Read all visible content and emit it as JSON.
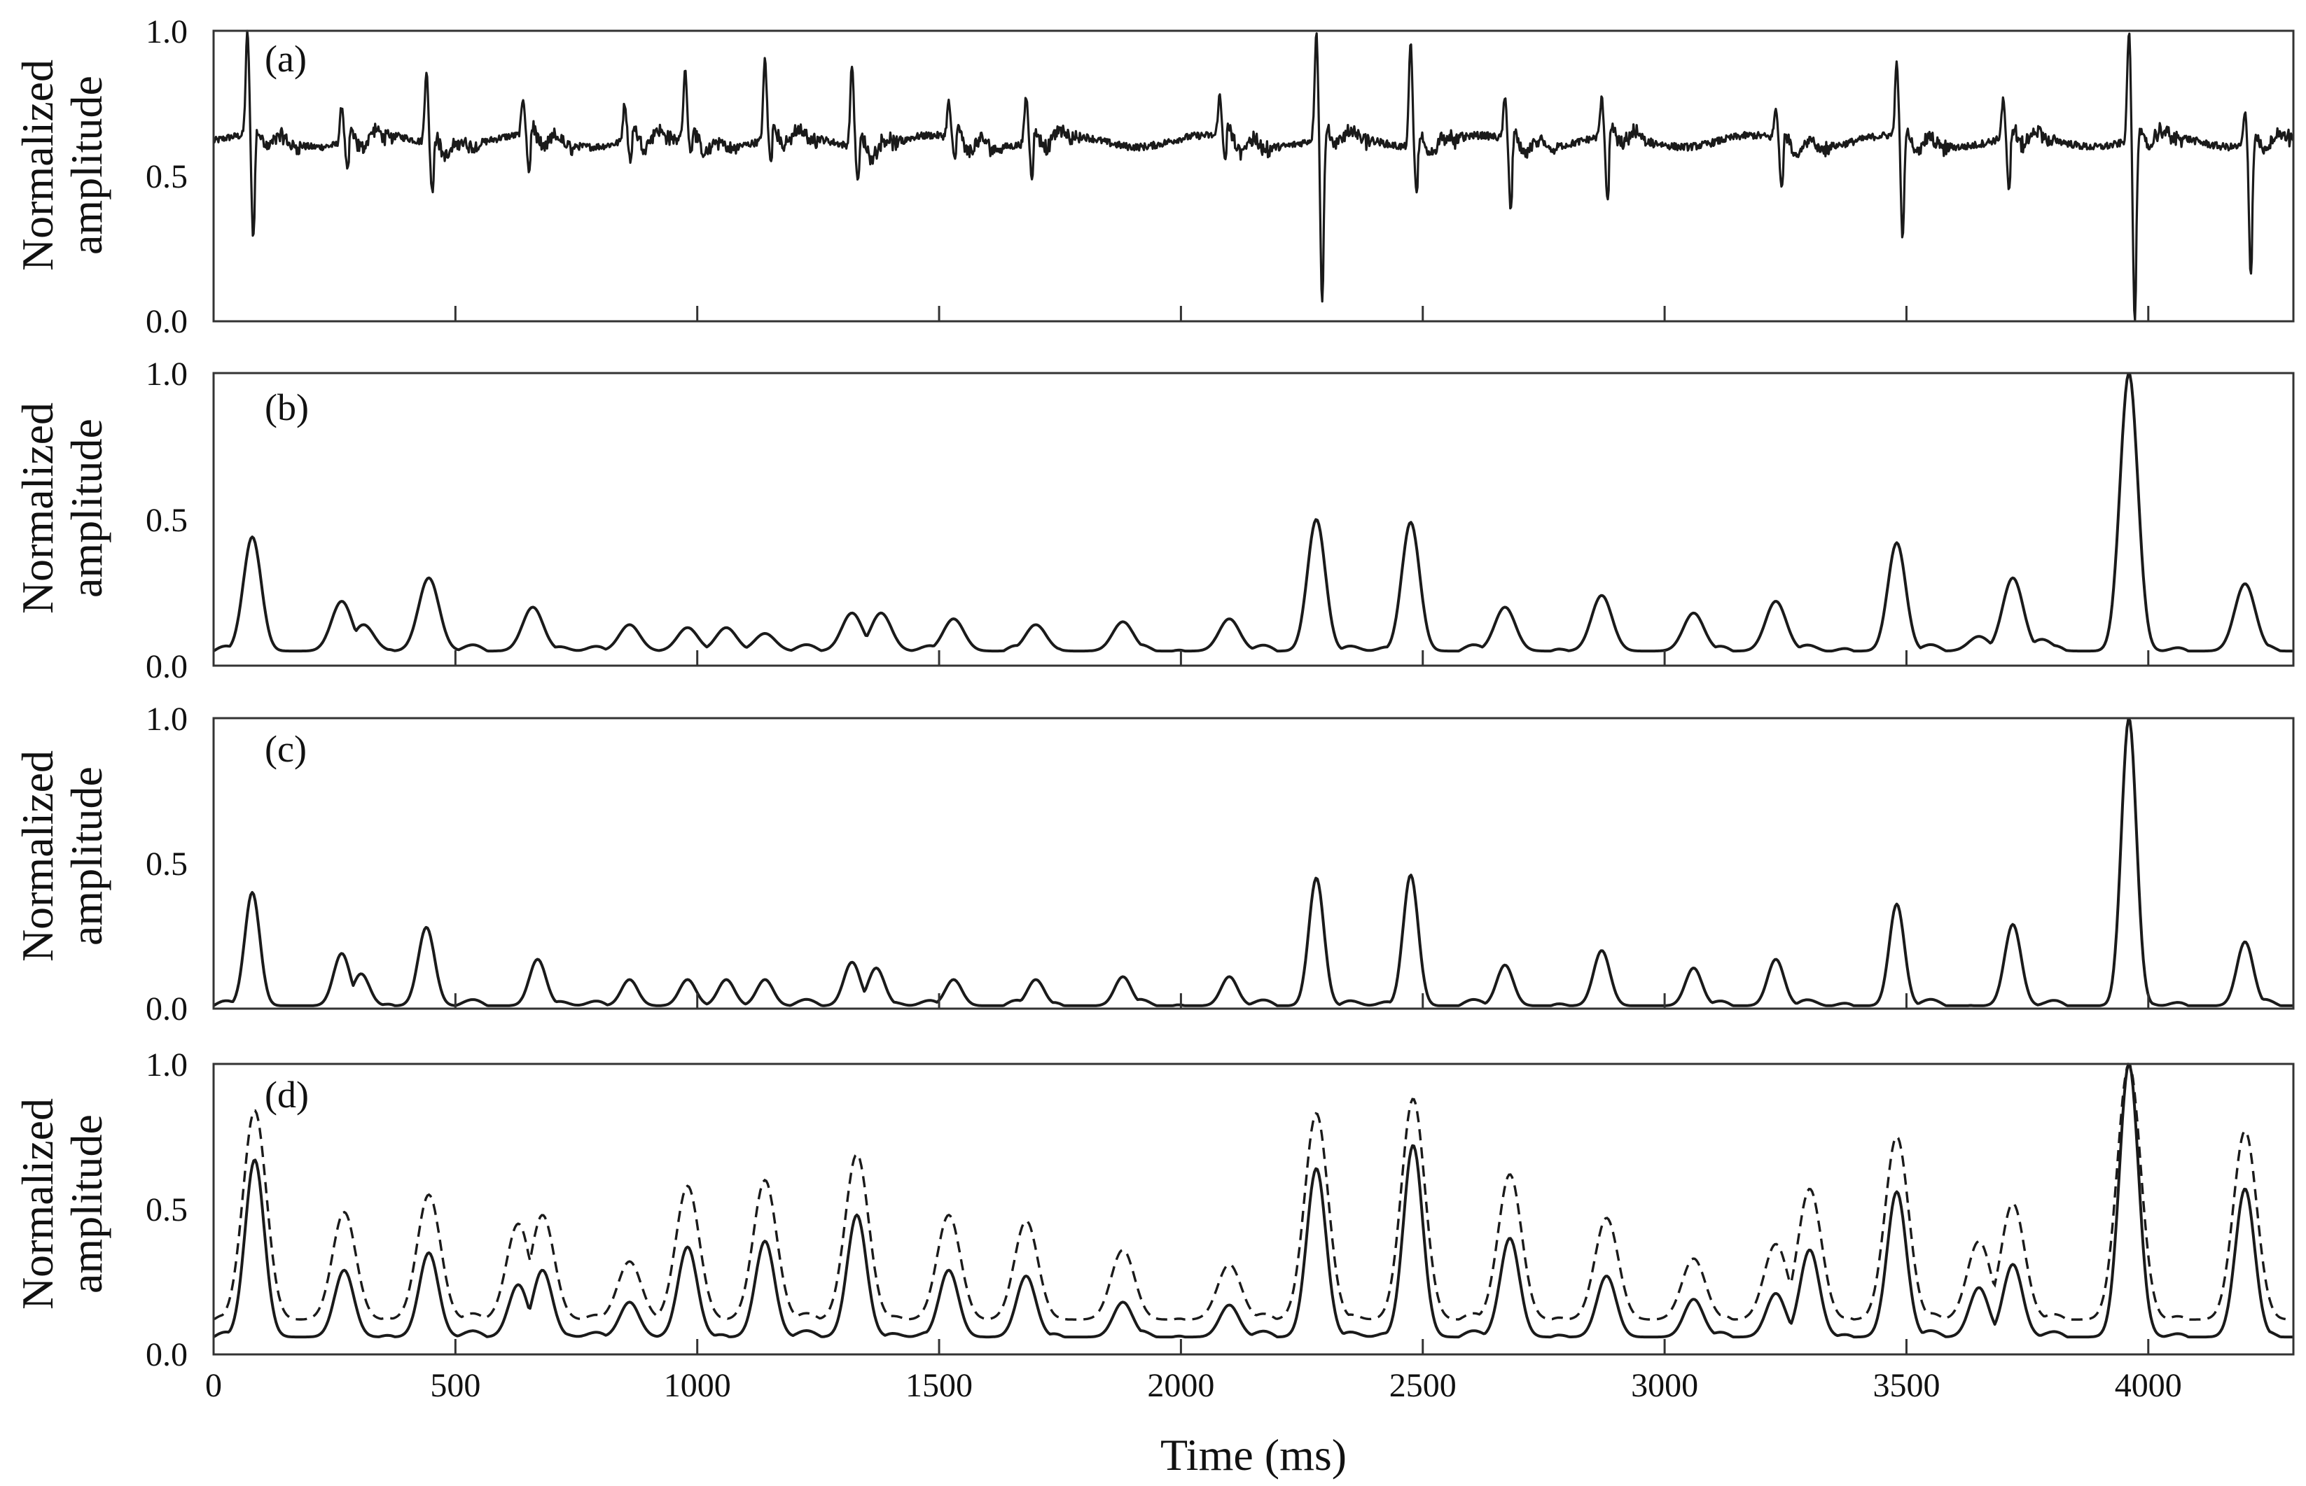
{
  "x_axis": {
    "label": "Time (ms)",
    "min": 0,
    "max": 4300,
    "ticks": [
      0,
      500,
      1000,
      1500,
      2000,
      2500,
      3000,
      3500,
      4000
    ]
  },
  "y_axis_label_lines": [
    "Normalized",
    "amplitude"
  ],
  "panels": [
    {
      "label": "(a)",
      "yticks": [
        "0.0",
        "0.5",
        "1.0"
      ]
    },
    {
      "label": "(b)",
      "yticks": [
        "0.0",
        "0.5",
        "1.0"
      ]
    },
    {
      "label": "(c)",
      "yticks": [
        "0.0",
        "0.5",
        "1.0"
      ]
    },
    {
      "label": "(d)",
      "yticks": [
        "0.0",
        "0.5",
        "1.0"
      ]
    }
  ],
  "chart_data": [
    {
      "type": "line",
      "panel": "(a)",
      "xlabel": "Time (ms)",
      "ylabel": "Normalized amplitude",
      "xlim": [
        0,
        4300
      ],
      "ylim": [
        0,
        1
      ],
      "baseline": 0.62,
      "spikes": [
        {
          "x": 70,
          "peak": 0.98,
          "trough": 0.27
        },
        {
          "x": 265,
          "peak": 0.75,
          "trough": 0.52
        },
        {
          "x": 440,
          "peak": 0.87,
          "trough": 0.46
        },
        {
          "x": 640,
          "peak": 0.75,
          "trough": 0.5
        },
        {
          "x": 850,
          "peak": 0.75,
          "trough": 0.55
        },
        {
          "x": 975,
          "peak": 0.87,
          "trough": 0.58
        },
        {
          "x": 1140,
          "peak": 0.9,
          "trough": 0.55
        },
        {
          "x": 1320,
          "peak": 0.9,
          "trough": 0.5
        },
        {
          "x": 1520,
          "peak": 0.74,
          "trough": 0.55
        },
        {
          "x": 1680,
          "peak": 0.78,
          "trough": 0.5
        },
        {
          "x": 2080,
          "peak": 0.76,
          "trough": 0.55
        },
        {
          "x": 2280,
          "peak": 0.99,
          "trough": 0.06
        },
        {
          "x": 2475,
          "peak": 0.98,
          "trough": 0.46
        },
        {
          "x": 2670,
          "peak": 0.76,
          "trough": 0.38
        },
        {
          "x": 2870,
          "peak": 0.75,
          "trough": 0.4
        },
        {
          "x": 3230,
          "peak": 0.72,
          "trough": 0.45
        },
        {
          "x": 3480,
          "peak": 0.87,
          "trough": 0.27
        },
        {
          "x": 3700,
          "peak": 0.75,
          "trough": 0.43
        },
        {
          "x": 3960,
          "peak": 1.0,
          "trough": 0.0
        },
        {
          "x": 4200,
          "peak": 0.73,
          "trough": 0.17
        }
      ]
    },
    {
      "type": "line",
      "panel": "(b)",
      "xlabel": "Time (ms)",
      "ylabel": "Normalized amplitude",
      "xlim": [
        0,
        4300
      ],
      "ylim": [
        0,
        1
      ],
      "baseline": 0.05,
      "peaks": [
        {
          "x": 80,
          "y": 0.44
        },
        {
          "x": 265,
          "y": 0.22
        },
        {
          "x": 310,
          "y": 0.14
        },
        {
          "x": 445,
          "y": 0.3
        },
        {
          "x": 660,
          "y": 0.2
        },
        {
          "x": 860,
          "y": 0.14
        },
        {
          "x": 980,
          "y": 0.13
        },
        {
          "x": 1060,
          "y": 0.13
        },
        {
          "x": 1140,
          "y": 0.11
        },
        {
          "x": 1320,
          "y": 0.18
        },
        {
          "x": 1380,
          "y": 0.18
        },
        {
          "x": 1530,
          "y": 0.16
        },
        {
          "x": 1700,
          "y": 0.14
        },
        {
          "x": 1880,
          "y": 0.15
        },
        {
          "x": 2100,
          "y": 0.16
        },
        {
          "x": 2280,
          "y": 0.5
        },
        {
          "x": 2475,
          "y": 0.49
        },
        {
          "x": 2670,
          "y": 0.2
        },
        {
          "x": 2870,
          "y": 0.24
        },
        {
          "x": 3060,
          "y": 0.18
        },
        {
          "x": 3230,
          "y": 0.22
        },
        {
          "x": 3480,
          "y": 0.42
        },
        {
          "x": 3650,
          "y": 0.1
        },
        {
          "x": 3720,
          "y": 0.3
        },
        {
          "x": 3780,
          "y": 0.09
        },
        {
          "x": 3960,
          "y": 1.0
        },
        {
          "x": 4200,
          "y": 0.28
        }
      ]
    },
    {
      "type": "line",
      "panel": "(c)",
      "xlabel": "Time (ms)",
      "ylabel": "Normalized amplitude",
      "xlim": [
        0,
        4300
      ],
      "ylim": [
        0,
        1
      ],
      "baseline": 0.01,
      "peaks": [
        {
          "x": 80,
          "y": 0.4
        },
        {
          "x": 265,
          "y": 0.19
        },
        {
          "x": 305,
          "y": 0.12
        },
        {
          "x": 440,
          "y": 0.28
        },
        {
          "x": 670,
          "y": 0.17
        },
        {
          "x": 860,
          "y": 0.1
        },
        {
          "x": 980,
          "y": 0.1
        },
        {
          "x": 1060,
          "y": 0.1
        },
        {
          "x": 1140,
          "y": 0.1
        },
        {
          "x": 1320,
          "y": 0.16
        },
        {
          "x": 1370,
          "y": 0.14
        },
        {
          "x": 1530,
          "y": 0.1
        },
        {
          "x": 1700,
          "y": 0.1
        },
        {
          "x": 1880,
          "y": 0.11
        },
        {
          "x": 2100,
          "y": 0.11
        },
        {
          "x": 2280,
          "y": 0.45
        },
        {
          "x": 2475,
          "y": 0.46
        },
        {
          "x": 2670,
          "y": 0.15
        },
        {
          "x": 2870,
          "y": 0.2
        },
        {
          "x": 3060,
          "y": 0.14
        },
        {
          "x": 3230,
          "y": 0.17
        },
        {
          "x": 3480,
          "y": 0.36
        },
        {
          "x": 3720,
          "y": 0.29
        },
        {
          "x": 3960,
          "y": 1.0
        },
        {
          "x": 4200,
          "y": 0.23
        }
      ]
    },
    {
      "type": "line",
      "panel": "(d)",
      "xlabel": "Time (ms)",
      "ylabel": "Normalized amplitude",
      "xlim": [
        0,
        4300
      ],
      "ylim": [
        0,
        1
      ],
      "series": [
        {
          "style": "solid",
          "baseline": 0.06,
          "peaks": [
            {
              "x": 85,
              "y": 0.67
            },
            {
              "x": 270,
              "y": 0.29
            },
            {
              "x": 445,
              "y": 0.35
            },
            {
              "x": 630,
              "y": 0.24
            },
            {
              "x": 680,
              "y": 0.29
            },
            {
              "x": 860,
              "y": 0.18
            },
            {
              "x": 980,
              "y": 0.37
            },
            {
              "x": 1140,
              "y": 0.39
            },
            {
              "x": 1330,
              "y": 0.48
            },
            {
              "x": 1520,
              "y": 0.29
            },
            {
              "x": 1680,
              "y": 0.27
            },
            {
              "x": 1880,
              "y": 0.18
            },
            {
              "x": 2100,
              "y": 0.17
            },
            {
              "x": 2280,
              "y": 0.64
            },
            {
              "x": 2480,
              "y": 0.72
            },
            {
              "x": 2680,
              "y": 0.4
            },
            {
              "x": 2880,
              "y": 0.27
            },
            {
              "x": 3060,
              "y": 0.19
            },
            {
              "x": 3230,
              "y": 0.21
            },
            {
              "x": 3300,
              "y": 0.36
            },
            {
              "x": 3480,
              "y": 0.56
            },
            {
              "x": 3650,
              "y": 0.23
            },
            {
              "x": 3720,
              "y": 0.31
            },
            {
              "x": 3960,
              "y": 1.0
            },
            {
              "x": 4200,
              "y": 0.57
            }
          ]
        },
        {
          "style": "dashed",
          "baseline": 0.12,
          "peaks": [
            {
              "x": 85,
              "y": 0.84
            },
            {
              "x": 270,
              "y": 0.49
            },
            {
              "x": 445,
              "y": 0.55
            },
            {
              "x": 630,
              "y": 0.45
            },
            {
              "x": 680,
              "y": 0.48
            },
            {
              "x": 860,
              "y": 0.32
            },
            {
              "x": 980,
              "y": 0.58
            },
            {
              "x": 1140,
              "y": 0.6
            },
            {
              "x": 1330,
              "y": 0.69
            },
            {
              "x": 1520,
              "y": 0.48
            },
            {
              "x": 1680,
              "y": 0.46
            },
            {
              "x": 1880,
              "y": 0.36
            },
            {
              "x": 2100,
              "y": 0.31
            },
            {
              "x": 2280,
              "y": 0.83
            },
            {
              "x": 2480,
              "y": 0.88
            },
            {
              "x": 2680,
              "y": 0.62
            },
            {
              "x": 2880,
              "y": 0.47
            },
            {
              "x": 3060,
              "y": 0.33
            },
            {
              "x": 3230,
              "y": 0.38
            },
            {
              "x": 3300,
              "y": 0.57
            },
            {
              "x": 3480,
              "y": 0.75
            },
            {
              "x": 3650,
              "y": 0.39
            },
            {
              "x": 3720,
              "y": 0.52
            },
            {
              "x": 3960,
              "y": 1.0
            },
            {
              "x": 4200,
              "y": 0.77
            }
          ]
        }
      ]
    }
  ]
}
